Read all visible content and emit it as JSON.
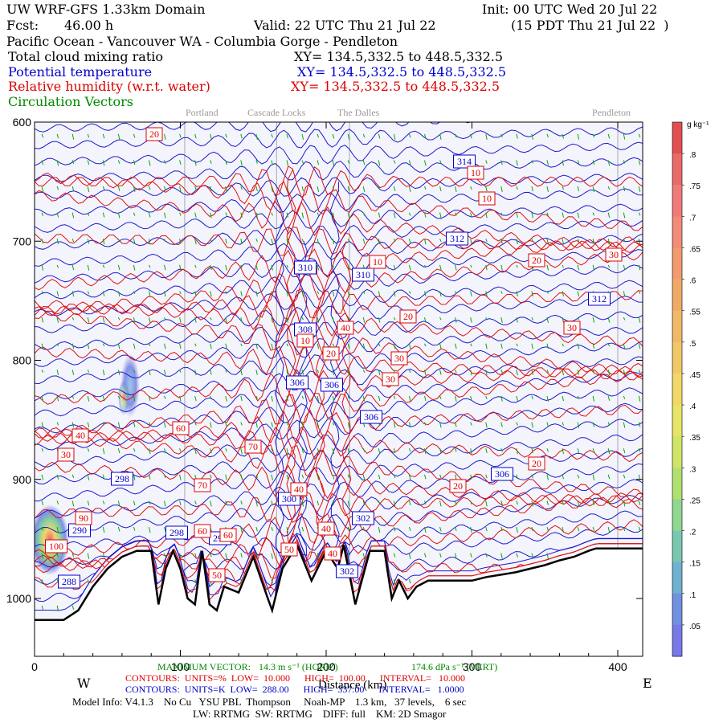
{
  "header": {
    "domain_title": "UW WRF-GFS 1.33km Domain",
    "init": "Init: 00 UTC Wed 20 Jul 22",
    "fcst_label": "Fcst:",
    "fcst_value": "46.00 h",
    "valid": "Valid: 22 UTC Thu 21 Jul 22",
    "valid_local": "(15 PDT Thu 21 Jul 22  )",
    "region": "Pacific Ocean - Vancouver WA - Columbia Gorge - Pendleton"
  },
  "fields": [
    {
      "label": "Total cloud mixing ratio",
      "xy": "XY= 134.5,332.5 to 448.5,332.5",
      "color": "#000000"
    },
    {
      "label": "Potential temperature",
      "xy": "XY= 134.5,332.5 to 448.5,332.5",
      "color": "#0000cc"
    },
    {
      "label": "Relative humidity (w.r.t. water)",
      "xy": "XY= 134.5,332.5 to 448.5,332.5",
      "color": "#dd0000"
    },
    {
      "label": "Circulation Vectors",
      "xy": "",
      "color": "#008800"
    }
  ],
  "places": [
    {
      "name": "Portland",
      "x_km": 103
    },
    {
      "name": "Cascade Locks",
      "x_km": 166
    },
    {
      "name": "The Dalles",
      "x_km": 216
    },
    {
      "name": "Pendleton",
      "x_km": 400
    }
  ],
  "chart_data": {
    "type": "cross-section contour",
    "xlabel": "Distance (km)",
    "x_ticks": [
      0,
      100,
      200,
      300,
      400
    ],
    "xlim": [
      0,
      400
    ],
    "y_ticks": [
      600,
      700,
      800,
      900,
      1000
    ],
    "y_scale": "pressure",
    "ylim": [
      600,
      1050
    ],
    "west_label": "W",
    "east_label": "E",
    "terrain_pressure_at_km": [
      [
        0,
        1018
      ],
      [
        10,
        1018
      ],
      [
        20,
        1018
      ],
      [
        30,
        1010
      ],
      [
        40,
        990
      ],
      [
        50,
        975
      ],
      [
        60,
        965
      ],
      [
        70,
        960
      ],
      [
        80,
        960
      ],
      [
        85,
        1005
      ],
      [
        90,
        975
      ],
      [
        95,
        960
      ],
      [
        100,
        975
      ],
      [
        105,
        1000
      ],
      [
        110,
        1005
      ],
      [
        115,
        960
      ],
      [
        120,
        1005
      ],
      [
        125,
        1010
      ],
      [
        130,
        990
      ],
      [
        140,
        995
      ],
      [
        150,
        965
      ],
      [
        160,
        1000
      ],
      [
        163,
        1010
      ],
      [
        170,
        975
      ],
      [
        180,
        955
      ],
      [
        190,
        985
      ],
      [
        200,
        960
      ],
      [
        208,
        975
      ],
      [
        212,
        955
      ],
      [
        220,
        1005
      ],
      [
        230,
        960
      ],
      [
        240,
        960
      ],
      [
        245,
        1000
      ],
      [
        250,
        985
      ],
      [
        256,
        1000
      ],
      [
        262,
        990
      ],
      [
        270,
        985
      ],
      [
        280,
        985
      ],
      [
        290,
        985
      ],
      [
        300,
        985
      ],
      [
        310,
        982
      ],
      [
        320,
        980
      ],
      [
        330,
        978
      ],
      [
        340,
        975
      ],
      [
        350,
        972
      ],
      [
        360,
        968
      ],
      [
        370,
        965
      ],
      [
        380,
        960
      ],
      [
        385,
        958
      ]
    ],
    "theta_labels": [
      {
        "v": "314",
        "x": 578,
        "y": 201
      },
      {
        "v": "312",
        "x": 569,
        "y": 297
      },
      {
        "v": "312",
        "x": 746,
        "y": 372
      },
      {
        "v": "310",
        "x": 380,
        "y": 333
      },
      {
        "v": "310",
        "x": 452,
        "y": 342
      },
      {
        "v": "308",
        "x": 380,
        "y": 410
      },
      {
        "v": "306",
        "x": 370,
        "y": 476
      },
      {
        "v": "306",
        "x": 413,
        "y": 479
      },
      {
        "v": "306",
        "x": 462,
        "y": 519
      },
      {
        "v": "306",
        "x": 625,
        "y": 590
      },
      {
        "v": "300",
        "x": 360,
        "y": 621
      },
      {
        "v": "302",
        "x": 432,
        "y": 711
      },
      {
        "v": "298",
        "x": 152,
        "y": 596
      },
      {
        "v": "298",
        "x": 220,
        "y": 663
      },
      {
        "v": "296",
        "x": 274,
        "y": 670
      },
      {
        "v": "290",
        "x": 99,
        "y": 660
      },
      {
        "v": "288",
        "x": 86,
        "y": 724
      },
      {
        "v": "302",
        "x": 452,
        "y": 645
      }
    ],
    "rh_labels": [
      {
        "v": "20",
        "x": 192,
        "y": 167
      },
      {
        "v": "10",
        "x": 592,
        "y": 215
      },
      {
        "v": "10",
        "x": 606,
        "y": 247
      },
      {
        "v": "10",
        "x": 470,
        "y": 326
      },
      {
        "v": "20",
        "x": 668,
        "y": 324
      },
      {
        "v": "30",
        "x": 764,
        "y": 317
      },
      {
        "v": "40",
        "x": 430,
        "y": 408
      },
      {
        "v": "20",
        "x": 508,
        "y": 394
      },
      {
        "v": "30",
        "x": 712,
        "y": 408
      },
      {
        "v": "10",
        "x": 380,
        "y": 424
      },
      {
        "v": "20",
        "x": 412,
        "y": 440
      },
      {
        "v": "30",
        "x": 497,
        "y": 446
      },
      {
        "v": "30",
        "x": 486,
        "y": 472
      },
      {
        "v": "60",
        "x": 225,
        "y": 533
      },
      {
        "v": "70",
        "x": 315,
        "y": 556
      },
      {
        "v": "40",
        "x": 100,
        "y": 542
      },
      {
        "v": "30",
        "x": 82,
        "y": 566
      },
      {
        "v": "20",
        "x": 668,
        "y": 577
      },
      {
        "v": "20",
        "x": 570,
        "y": 605
      },
      {
        "v": "70",
        "x": 252,
        "y": 604
      },
      {
        "v": "40",
        "x": 372,
        "y": 609
      },
      {
        "v": "60",
        "x": 252,
        "y": 661
      },
      {
        "v": "60",
        "x": 284,
        "y": 666
      },
      {
        "v": "40",
        "x": 406,
        "y": 658
      },
      {
        "v": "50",
        "x": 360,
        "y": 684
      },
      {
        "v": "40",
        "x": 414,
        "y": 689
      },
      {
        "v": "50",
        "x": 270,
        "y": 716
      },
      {
        "v": "100",
        "x": 70,
        "y": 680
      },
      {
        "v": "90",
        "x": 104,
        "y": 645
      }
    ],
    "colorbar": {
      "units": "g kg⁻¹",
      "ticks": [
        ".8",
        ".75",
        ".7",
        ".65",
        ".6",
        ".55",
        ".5",
        ".45",
        ".4",
        ".35",
        ".3",
        ".25",
        ".2",
        ".15",
        ".1",
        ".05"
      ],
      "colors": [
        "#e05050",
        "#ea6a6a",
        "#f07a7a",
        "#f28b78",
        "#f29a70",
        "#f0aa68",
        "#f0b868",
        "#f0c868",
        "#f0d868",
        "#e8e468",
        "#d0e468",
        "#b0e070",
        "#90d890",
        "#78c8b0",
        "#70b0d0",
        "#7090e0",
        "#7878e8"
      ]
    },
    "footer": {
      "max_vector_label": "MAXIMUM VECTOR:",
      "max_vector_h": "14.3 m s⁻¹ (HORIZ)",
      "max_vector_v": "174.6 dPa s⁻¹ (VERT)",
      "rh_contours": "CONTOURS:  UNITS=%  LOW=  10.000      HIGH=  100.00      INTERVAL=   10.000",
      "theta_contours": "CONTOURS:  UNITS=K  LOW=  288.00      HIGH=  337.00      INTERVAL=   1.0000",
      "model_info": "Model Info: V4.1.3    No Cu   YSU PBL  Thompson     Noah-MP    1.3 km,   37 levels,    6 sec",
      "model_info2": "LW: RRTMG  SW: RRTMG    DIFF: full    KM: 2D Smagor"
    }
  }
}
